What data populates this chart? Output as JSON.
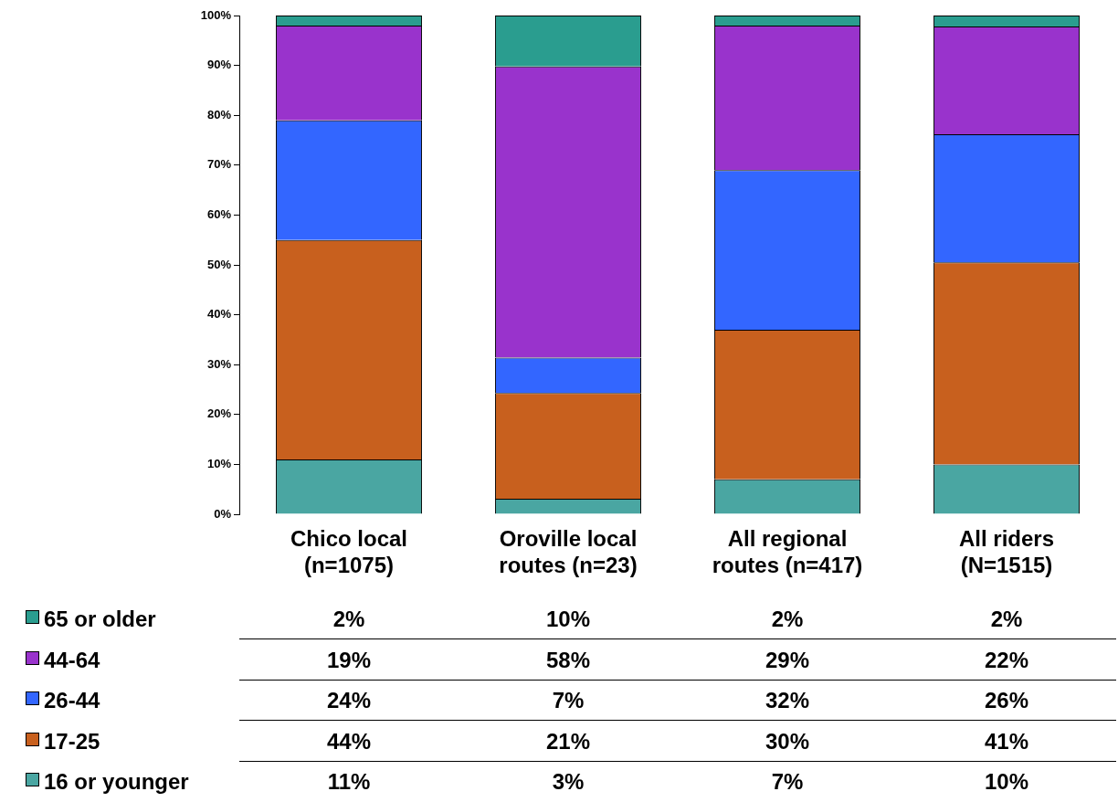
{
  "chart_data": {
    "type": "bar",
    "stacked": true,
    "grid": false,
    "legend": "bottom left",
    "data_labels": true,
    "categories": [
      "Chico local\n(n=1075)",
      "Oroville local\nroutes (n=23)",
      "All regional\nroutes (n=417)",
      "All riders\n(N=1515)"
    ],
    "ylim": [
      0,
      100
    ],
    "yticks": [
      {
        "value": 0,
        "label": "0%"
      },
      {
        "value": 10,
        "label": "10%"
      },
      {
        "value": 20,
        "label": "20%"
      },
      {
        "value": 30,
        "label": "30%"
      },
      {
        "value": 40,
        "label": "40%"
      },
      {
        "value": 50,
        "label": "50%"
      },
      {
        "value": 60,
        "label": "60%"
      },
      {
        "value": 70,
        "label": "70%"
      },
      {
        "value": 80,
        "label": "80%"
      },
      {
        "value": 90,
        "label": "90%"
      },
      {
        "value": 100,
        "label": "100%"
      }
    ],
    "series": [
      {
        "name": "16 or younger",
        "color": "#4aa6a2",
        "values": [
          11,
          3.1,
          7,
          10
        ],
        "value_labels": [
          "11%",
          "3%",
          "7%",
          "10%"
        ]
      },
      {
        "name": "17-25",
        "color": "#c8601e",
        "values": [
          44,
          21.2,
          30,
          40.5
        ],
        "value_labels": [
          "44%",
          "21%",
          "30%",
          "41%"
        ]
      },
      {
        "name": "26-44",
        "color": "#3366ff",
        "values": [
          24,
          7.1,
          32,
          25.7
        ],
        "value_labels": [
          "24%",
          "7%",
          "32%",
          "26%"
        ]
      },
      {
        "name": "44-64",
        "color": "#9933cc",
        "values": [
          19,
          58.4,
          29,
          21.6
        ],
        "value_labels": [
          "19%",
          "58%",
          "29%",
          "22%"
        ]
      },
      {
        "name": "65 or older",
        "color": "#2a9d8f",
        "values": [
          2,
          10.2,
          2,
          2.2
        ],
        "value_labels": [
          "2%",
          "10%",
          "2%",
          "2%"
        ]
      }
    ]
  }
}
